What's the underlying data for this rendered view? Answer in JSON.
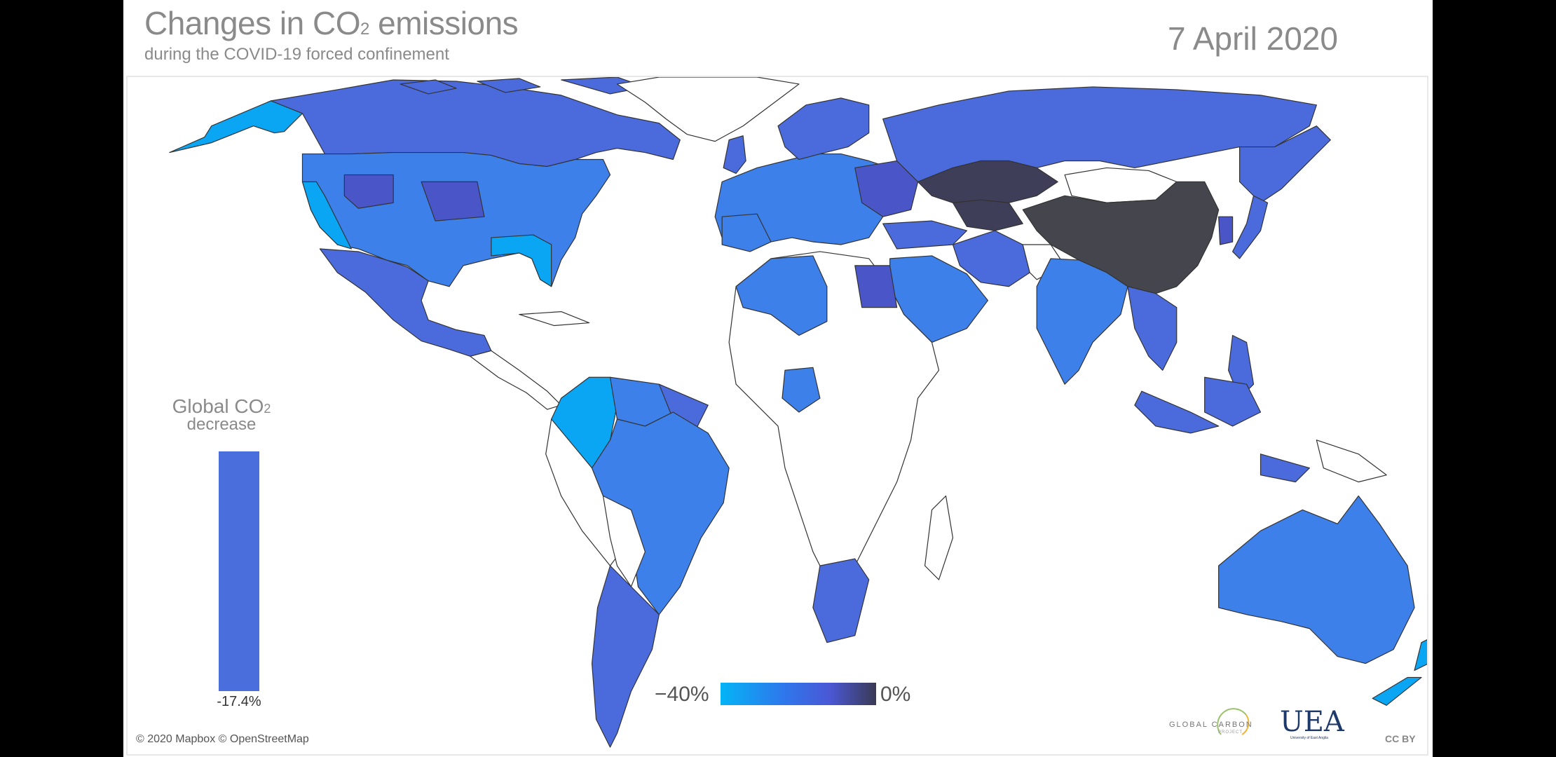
{
  "header": {
    "title_pre": "Changes in CO",
    "title_sub": "2",
    "title_post": " emissions",
    "subtitle": "during the COVID-19 forced confinement",
    "date": "7 April 2020"
  },
  "global_indicator": {
    "label_line1_pre": "Global CO",
    "label_line1_sub": "2",
    "label_line2": "decrease",
    "value": "-17.4%",
    "value_fraction": 0.435,
    "color": "#4a6edc"
  },
  "legend": {
    "min_label": "−40%",
    "max_label": "0%",
    "min_color": "#04b4f6",
    "max_color": "#3a3a54"
  },
  "attribution": "© 2020 Mapbox © OpenStreetMap",
  "logos": {
    "gcp": "GLOBAL CARBON",
    "gcp_sub": "PROJECT",
    "uea": "UEA",
    "uea_sub": "University of East Anglia",
    "license": "CC BY"
  },
  "colors": {
    "no_data": "#ffffff",
    "border": "#333333",
    "light_blue": "#0aa6f4",
    "mid_blue": "#3e80ea",
    "royal_blue": "#4b6bdc",
    "indigo": "#4a55c8",
    "dark_slate": "#3e3e58",
    "charcoal": "#45454d"
  }
}
